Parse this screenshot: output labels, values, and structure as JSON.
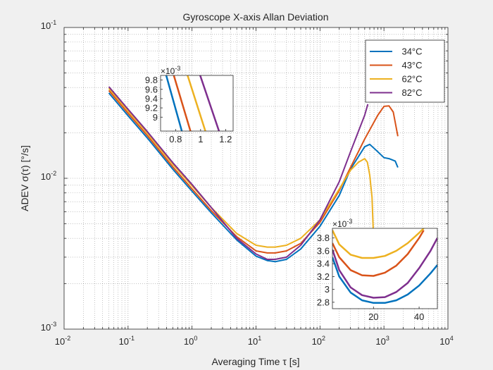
{
  "chart_data": {
    "type": "line",
    "title": "Gyroscope X-axis Allan Deviation",
    "xlabel": "Averaging Time τ [s]",
    "ylabel": "ADEV σ(τ) [°/s]",
    "xscale": "log",
    "yscale": "log",
    "xlim": [
      0.01,
      10000
    ],
    "ylim": [
      0.001,
      0.1
    ],
    "grid": true,
    "legend_location": "top-right",
    "x_ticks": [
      {
        "value": 0.01,
        "label": "10",
        "exp": "-2"
      },
      {
        "value": 0.1,
        "label": "10",
        "exp": "-1"
      },
      {
        "value": 1,
        "label": "10",
        "exp": "0"
      },
      {
        "value": 10,
        "label": "10",
        "exp": "1"
      },
      {
        "value": 100,
        "label": "10",
        "exp": "2"
      },
      {
        "value": 1000,
        "label": "10",
        "exp": "3"
      },
      {
        "value": 10000,
        "label": "10",
        "exp": "4"
      }
    ],
    "y_ticks": [
      {
        "value": 0.001,
        "label": "10",
        "exp": "-3"
      },
      {
        "value": 0.01,
        "label": "10",
        "exp": "-2"
      },
      {
        "value": 0.1,
        "label": "10",
        "exp": "-1"
      }
    ],
    "series": [
      {
        "name": "34°C",
        "color": "#0072BD",
        "x": [
          0.05,
          0.1,
          0.2,
          0.5,
          1,
          2,
          5,
          10,
          15,
          20,
          30,
          50,
          100,
          200,
          300,
          500,
          600,
          800,
          1000,
          1200,
          1500,
          1650
        ],
        "y": [
          0.0368,
          0.026,
          0.0185,
          0.0115,
          0.0082,
          0.0059,
          0.0039,
          0.00305,
          0.00285,
          0.0028,
          0.0029,
          0.0034,
          0.0048,
          0.0077,
          0.0115,
          0.0162,
          0.0168,
          0.015,
          0.0137,
          0.0135,
          0.013,
          0.0118
        ]
      },
      {
        "name": "43°C",
        "color": "#D95319",
        "x": [
          0.05,
          0.1,
          0.2,
          0.5,
          1,
          2,
          5,
          10,
          15,
          20,
          30,
          50,
          100,
          200,
          300,
          500,
          800,
          1000,
          1200,
          1400,
          1650
        ],
        "y": [
          0.0382,
          0.027,
          0.0192,
          0.0119,
          0.0085,
          0.0061,
          0.0041,
          0.0033,
          0.0032,
          0.0032,
          0.0033,
          0.0037,
          0.0051,
          0.0083,
          0.0118,
          0.0182,
          0.0262,
          0.03,
          0.0302,
          0.0275,
          0.019
        ]
      },
      {
        "name": "62°C",
        "color": "#EDB120",
        "x": [
          0.05,
          0.1,
          0.2,
          0.5,
          1,
          2,
          5,
          10,
          15,
          20,
          30,
          50,
          100,
          200,
          300,
          400,
          500,
          550,
          600,
          650,
          680
        ],
        "y": [
          0.0395,
          0.028,
          0.0199,
          0.0124,
          0.0089,
          0.0064,
          0.0043,
          0.0036,
          0.0035,
          0.0035,
          0.0036,
          0.004,
          0.0053,
          0.0085,
          0.0113,
          0.0128,
          0.0135,
          0.0128,
          0.0105,
          0.0075,
          0.0045
        ]
      },
      {
        "name": "82°C",
        "color": "#7E2F8E",
        "x": [
          0.05,
          0.1,
          0.2,
          0.5,
          1,
          2,
          5,
          10,
          15,
          20,
          30,
          50,
          100,
          200,
          300,
          500,
          560
        ],
        "y": [
          0.0405,
          0.0287,
          0.0204,
          0.0127,
          0.0091,
          0.0064,
          0.004,
          0.00315,
          0.0029,
          0.0029,
          0.003,
          0.0036,
          0.0053,
          0.0095,
          0.015,
          0.0262,
          0.031
        ]
      }
    ],
    "insets": [
      {
        "multiplier_label": "×10",
        "multiplier_exp": "-3",
        "xlim": [
          0.68,
          1.26
        ],
        "ylim": [
          8.7,
          9.9
        ],
        "x_ticks": [
          {
            "value": 0.8,
            "label": "0.8"
          },
          {
            "value": 1,
            "label": "1"
          },
          {
            "value": 1.2,
            "label": "1.2"
          }
        ],
        "y_ticks": [
          {
            "value": 9,
            "label": "9"
          },
          {
            "value": 9.2,
            "label": "9.2"
          },
          {
            "value": 9.4,
            "label": "9.4"
          },
          {
            "value": 9.6,
            "label": "9.6"
          },
          {
            "value": 9.8,
            "label": "9.8"
          }
        ],
        "series": [
          {
            "color": "#0072BD",
            "x": [
              0.72,
              0.86
            ],
            "y": [
              9.95,
              8.6
            ]
          },
          {
            "color": "#D95319",
            "x": [
              0.78,
              0.93
            ],
            "y": [
              9.95,
              8.6
            ]
          },
          {
            "color": "#EDB120",
            "x": [
              0.89,
              1.05
            ],
            "y": [
              9.95,
              8.6
            ]
          },
          {
            "color": "#7E2F8E",
            "x": [
              0.99,
              1.16
            ],
            "y": [
              9.95,
              8.6
            ]
          }
        ]
      },
      {
        "multiplier_label": "×10",
        "multiplier_exp": "-3",
        "xlim": [
          2,
          48
        ],
        "ylim": [
          2.7,
          3.95
        ],
        "x_ticks": [
          {
            "value": 20,
            "label": "20"
          },
          {
            "value": 40,
            "label": "40"
          }
        ],
        "y_ticks": [
          {
            "value": 2.8,
            "label": "2.8"
          },
          {
            "value": 3,
            "label": "3"
          },
          {
            "value": 3.2,
            "label": "3.2"
          },
          {
            "value": 3.4,
            "label": "3.4"
          },
          {
            "value": 3.6,
            "label": "3.6"
          },
          {
            "value": 3.8,
            "label": "3.8"
          }
        ],
        "series": [
          {
            "color": "#0072BD",
            "x": [
              2,
              5,
              10,
              15,
              20,
              25,
              30,
              35,
              40,
              45,
              48
            ],
            "y": [
              3.5,
              3.2,
              2.95,
              2.83,
              2.79,
              2.79,
              2.83,
              2.92,
              3.06,
              3.25,
              3.38
            ]
          },
          {
            "color": "#D95319",
            "x": [
              2,
              5,
              10,
              15,
              20,
              25,
              30,
              35,
              40,
              42
            ],
            "y": [
              3.72,
              3.5,
              3.3,
              3.22,
              3.21,
              3.26,
              3.37,
              3.55,
              3.8,
              3.92
            ]
          },
          {
            "color": "#EDB120",
            "x": [
              2,
              5,
              10,
              15,
              20,
              25,
              30,
              35,
              40,
              42
            ],
            "y": [
              3.92,
              3.7,
              3.54,
              3.49,
              3.49,
              3.52,
              3.6,
              3.72,
              3.88,
              3.95
            ]
          },
          {
            "color": "#7E2F8E",
            "x": [
              2,
              5,
              10,
              15,
              20,
              25,
              30,
              35,
              40,
              45,
              48
            ],
            "y": [
              3.62,
              3.3,
              3.03,
              2.91,
              2.87,
              2.88,
              2.96,
              3.1,
              3.33,
              3.6,
              3.8
            ]
          }
        ]
      }
    ]
  }
}
